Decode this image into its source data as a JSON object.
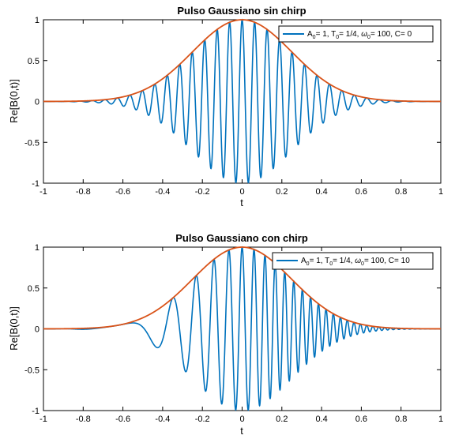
{
  "colors": {
    "signal": "#0072BD",
    "envelope": "#D95319",
    "axis": "#000000",
    "background": "#ffffff"
  },
  "chart_data": [
    {
      "type": "line",
      "title": "Pulso Gaussiano sin chirp",
      "xlabel": "t",
      "ylabel": "Re[B(0,t)]",
      "xlim": [
        -1,
        1
      ],
      "ylim": [
        -1,
        1
      ],
      "x_ticks": [
        "-1",
        "-0.8",
        "-0.6",
        "-0.4",
        "-0.2",
        "0",
        "0.2",
        "0.4",
        "0.6",
        "0.8",
        "1"
      ],
      "y_ticks": [
        "-1",
        "-0.5",
        "0",
        "0.5",
        "1"
      ],
      "grid": false,
      "legend": {
        "position": "top-right",
        "entry": {
          "A_sym": "A",
          "A_sub": "0",
          "A_val": "= 1, ",
          "T_sym": "T",
          "T_sub": "0",
          "T_val": "= 1/4, ",
          "w_sym": "ω",
          "w_sub": "0",
          "w_val": "= 100, C= 0"
        }
      },
      "model": {
        "A0": 1,
        "T0": 0.25,
        "omega0": 100,
        "C": 0
      },
      "series": [
        {
          "role": "signal",
          "formula": "A0*exp(-(1+iC)t^2/(2*T0^2))*exp(-i*omega0*t), real part"
        },
        {
          "role": "envelope",
          "formula": "A0*exp(-t^2/(2*T0^2))"
        }
      ]
    },
    {
      "type": "line",
      "title": "Pulso Gaussiano con chirp",
      "xlabel": "t",
      "ylabel": "Re[B(0,t)]",
      "xlim": [
        -1,
        1
      ],
      "ylim": [
        -1,
        1
      ],
      "x_ticks": [
        "-1",
        "-0.8",
        "-0.6",
        "-0.4",
        "-0.2",
        "0",
        "0.2",
        "0.4",
        "0.6",
        "0.8",
        "1"
      ],
      "y_ticks": [
        "-1",
        "-0.5",
        "0",
        "0.5",
        "1"
      ],
      "grid": false,
      "legend": {
        "position": "top-right",
        "entry": {
          "A_sym": "A",
          "A_sub": "0",
          "A_val": "= 1, ",
          "T_sym": "T",
          "T_sub": "0",
          "T_val": "= 1/4, ",
          "w_sym": "ω",
          "w_sub": "0",
          "w_val": "= 100, C= 10"
        }
      },
      "model": {
        "A0": 1,
        "T0": 0.25,
        "omega0": 100,
        "C": 10
      },
      "series": [
        {
          "role": "signal",
          "formula": "A0*exp(-(1+iC)t^2/(2*T0^2))*exp(-i*omega0*t), real part"
        },
        {
          "role": "envelope",
          "formula": "A0*exp(-t^2/(2*T0^2))"
        }
      ]
    }
  ]
}
